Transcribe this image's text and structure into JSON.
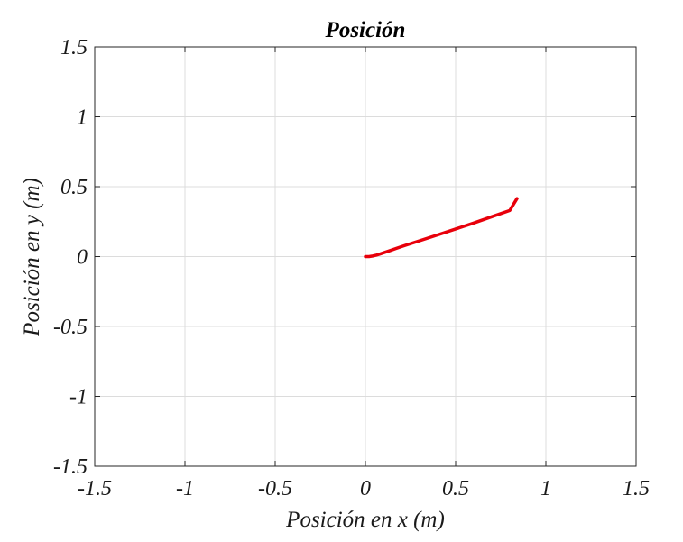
{
  "chart_data": {
    "type": "line",
    "title": "Posición",
    "xlabel": "Posición en x (m)",
    "ylabel": "Posición en y (m)",
    "xlim": [
      -1.5,
      1.5
    ],
    "ylim": [
      -1.5,
      1.5
    ],
    "xticks": [
      "-1.5",
      "-1",
      "-0.5",
      "0",
      "0.5",
      "1",
      "1.5"
    ],
    "yticks": [
      "1.5",
      "1",
      "0.5",
      "0",
      "-0.5",
      "-1",
      "-1.5"
    ],
    "grid": true,
    "series": [
      {
        "color": "#e8000b",
        "x": [
          0.0,
          0.02,
          0.04,
          0.06,
          0.08,
          0.1,
          0.13,
          0.17,
          0.22,
          0.3,
          0.4,
          0.5,
          0.6,
          0.7,
          0.8,
          0.84
        ],
        "y": [
          0.0,
          0.0,
          0.004,
          0.01,
          0.018,
          0.027,
          0.04,
          0.058,
          0.08,
          0.113,
          0.155,
          0.197,
          0.24,
          0.285,
          0.33,
          0.415
        ]
      }
    ]
  }
}
